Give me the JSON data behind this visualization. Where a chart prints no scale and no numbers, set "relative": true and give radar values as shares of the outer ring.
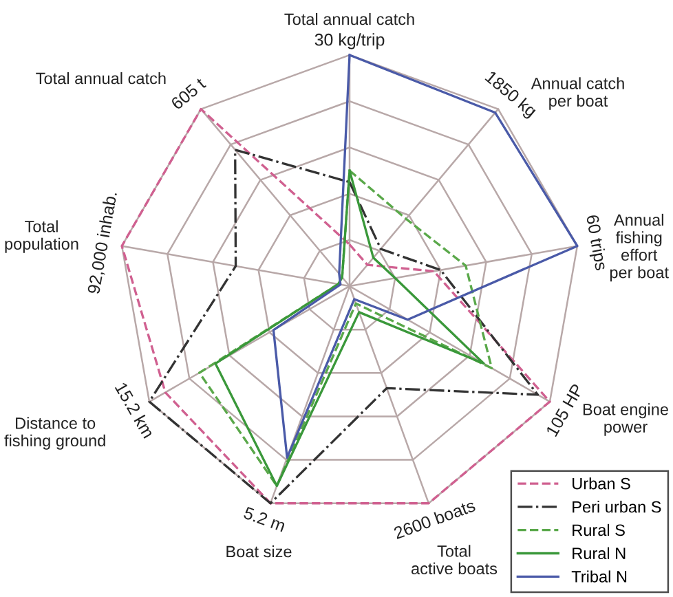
{
  "chart_data": {
    "type": "radar",
    "relative": true,
    "grid": true,
    "legend": "bottom right",
    "categories": [
      "Total annual catch",
      "Annual catch\nper boat",
      "Annual\nfishing\neffort\nper boat",
      "Boat engine\npower",
      "Total\nactive boats",
      "Boat size",
      "Distance to\nfishing ground",
      "Total\npopulation",
      "Total annual catch"
    ],
    "annotations": [
      "30 kg/trip",
      "1850 kg",
      "60 trips",
      "105 HP",
      "2600 boats",
      "5.2 m",
      "15.2 km",
      "92,000 inhab.",
      "605 t"
    ],
    "series": [
      {
        "name": "Urban S",
        "color": "#d06090",
        "line_style": "dashed",
        "values": [
          0.18,
          0.12,
          0.37,
          1.0,
          1.0,
          1.0,
          0.92,
          1.0,
          1.0
        ]
      },
      {
        "name": "Peri urban S",
        "color": "#333333",
        "line_style": "dashdot",
        "values": [
          0.45,
          0.21,
          0.4,
          0.94,
          0.47,
          1.0,
          1.0,
          0.5,
          0.77
        ]
      },
      {
        "name": "Rural S",
        "color": "#5aa84a",
        "line_style": "dashed",
        "values": [
          0.5,
          0.38,
          0.51,
          0.71,
          0.08,
          0.92,
          0.75,
          0.05,
          0.05
        ]
      },
      {
        "name": "Rural N",
        "color": "#3a983a",
        "line_style": "solid",
        "values": [
          0.5,
          0.16,
          0.2,
          0.67,
          0.12,
          0.92,
          0.67,
          0.05,
          0.05
        ]
      },
      {
        "name": "Tribal N",
        "color": "#4a5aa8",
        "line_style": "solid",
        "values": [
          1.0,
          0.98,
          1.0,
          0.29,
          0.06,
          0.79,
          0.38,
          0.04,
          0.07
        ]
      }
    ]
  }
}
